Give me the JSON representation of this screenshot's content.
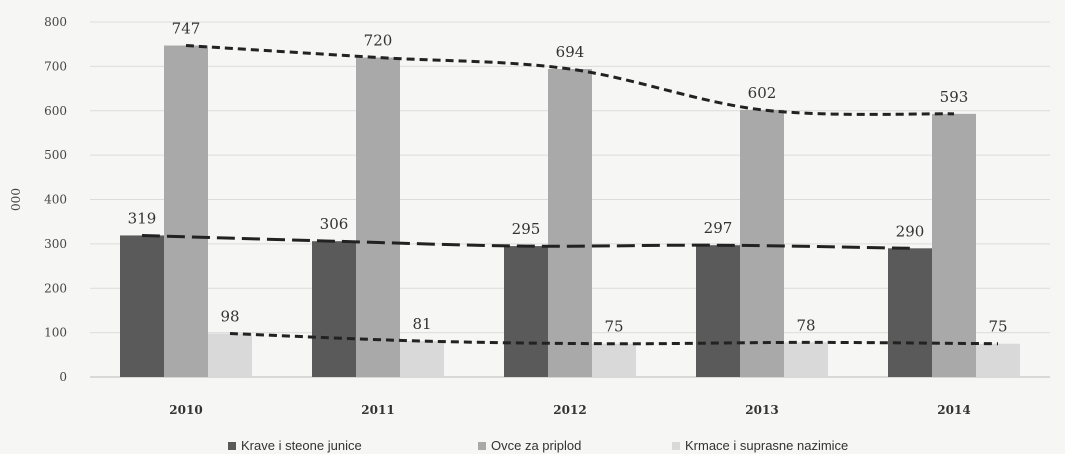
{
  "chart_data": {
    "type": "bar",
    "ylabel": "000",
    "ylim": [
      0,
      800
    ],
    "yticks": [
      0,
      100,
      200,
      300,
      400,
      500,
      600,
      700,
      800
    ],
    "grid": true,
    "legend_position": "bottom",
    "categories": [
      "2010",
      "2011",
      "2012",
      "2013",
      "2014"
    ],
    "series": [
      {
        "name": "Krave i steone junice",
        "values": [
          319,
          306,
          295,
          297,
          290
        ],
        "color": "#5a5a5a",
        "trend_style": "long-dash"
      },
      {
        "name": "Ovce za priplod",
        "values": [
          747,
          720,
          694,
          602,
          593
        ],
        "color": "#a9a9a9",
        "trend_style": "short-dash"
      },
      {
        "name": "Krmace i suprasne nazimice",
        "values": [
          98,
          81,
          75,
          78,
          75
        ],
        "color": "#d9d9d9",
        "trend_style": "short-dash"
      }
    ],
    "data_labels": [
      [
        "319",
        "306",
        "295",
        "297",
        "290"
      ],
      [
        "747",
        "720",
        "694",
        "602",
        "593"
      ],
      [
        "98",
        "81",
        "75",
        "78",
        "75"
      ]
    ]
  }
}
